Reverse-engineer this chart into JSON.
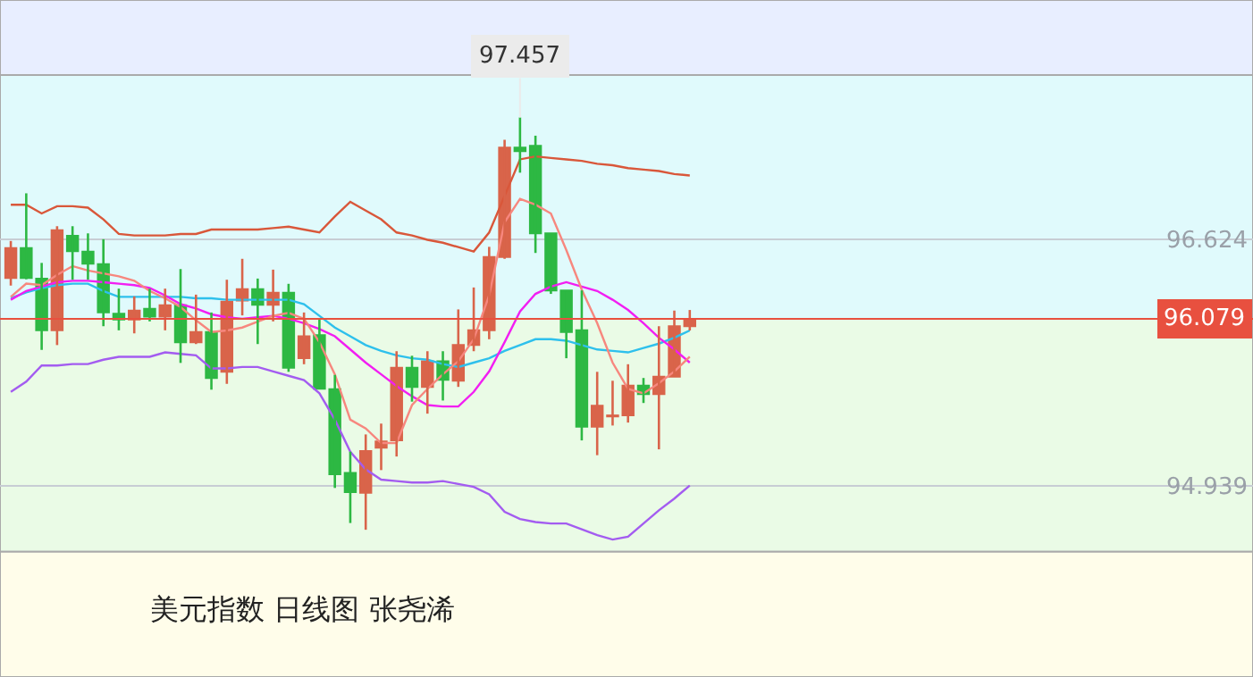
{
  "chart_data": {
    "type": "candlestick",
    "title": "美元指数 日线图 张尧浠",
    "categories": [
      null,
      null,
      null,
      null,
      null,
      null,
      null,
      null,
      null,
      null,
      null,
      null,
      null,
      null,
      null,
      null,
      null,
      null,
      null,
      null,
      null,
      null,
      null,
      null,
      null,
      null,
      null,
      null,
      null,
      null,
      null,
      null,
      null,
      null,
      null,
      null,
      null,
      null,
      null,
      null,
      null,
      null,
      null,
      null,
      null
    ],
    "ohlc": [
      [
        96.359,
        96.612,
        96.307,
        96.563
      ],
      [
        96.563,
        96.938,
        96.35,
        96.359
      ],
      [
        96.355,
        96.462,
        95.867,
        96.001
      ],
      [
        96.001,
        96.713,
        95.9,
        96.685
      ],
      [
        96.648,
        96.713,
        96.347,
        96.542
      ],
      [
        96.539,
        96.664,
        96.347,
        96.457
      ],
      [
        96.453,
        96.624,
        96.029,
        96.123
      ],
      [
        96.115,
        96.286,
        96.001,
        96.075
      ],
      [
        96.075,
        96.233,
        95.98,
        96.136
      ],
      [
        96.148,
        96.286,
        96.062,
        96.095
      ],
      [
        96.095,
        96.286,
        96.001,
        96.172
      ],
      [
        96.172,
        96.42,
        95.778,
        95.919
      ],
      [
        95.919,
        96.245,
        95.907,
        95.989
      ],
      [
        95.989,
        96.123,
        95.595,
        95.675
      ],
      [
        95.717,
        96.347,
        95.635,
        96.197
      ],
      [
        96.205,
        96.49,
        96.103,
        96.282
      ],
      [
        96.282,
        96.355,
        95.907,
        96.176
      ],
      [
        96.176,
        96.416,
        96.062,
        96.258
      ],
      [
        96.258,
        96.319,
        95.717,
        95.745
      ],
      [
        95.81,
        96.123,
        95.769,
        95.961
      ],
      [
        95.968,
        96.083,
        95.602,
        95.602
      ],
      [
        95.598,
        95.696,
        94.923,
        95.016
      ],
      [
        95.025,
        95.171,
        94.683,
        94.894
      ],
      [
        94.89,
        95.289,
        94.637,
        95.175
      ],
      [
        95.199,
        95.363,
        95.045,
        95.241
      ],
      [
        95.248,
        95.858,
        95.138,
        95.745
      ],
      [
        95.745,
        95.827,
        95.513,
        95.614
      ],
      [
        95.614,
        95.858,
        95.431,
        95.79
      ],
      [
        95.79,
        95.858,
        95.521,
        95.663
      ],
      [
        95.656,
        96.144,
        95.614,
        95.9
      ],
      [
        95.9,
        96.294,
        95.858,
        96.001
      ],
      [
        96.001,
        96.572,
        95.94,
        96.502
      ],
      [
        96.502,
        97.304,
        96.49,
        97.25
      ],
      [
        97.25,
        97.457,
        97.079,
        97.226
      ],
      [
        97.263,
        97.332,
        96.53,
        96.664
      ],
      [
        96.664,
        96.664,
        96.25,
        96.274
      ],
      [
        96.274,
        96.274,
        95.81,
        95.989
      ],
      [
        96.001,
        96.274,
        95.248,
        95.342
      ],
      [
        95.342,
        95.717,
        95.147,
        95.485
      ],
      [
        95.412,
        95.656,
        95.35,
        95.419
      ],
      [
        95.419,
        95.769,
        95.37,
        95.623
      ],
      [
        95.623,
        95.675,
        95.504,
        95.565
      ],
      [
        95.565,
        96.029,
        95.187,
        95.684
      ],
      [
        95.684,
        96.136,
        95.684,
        96.029
      ],
      [
        96.029,
        96.14,
        96.0,
        96.079
      ]
    ],
    "colors": [
      "#d9644a",
      "#2db843",
      "#2db843",
      "#d9644a",
      "#2db843",
      "#2db843",
      "#2db843",
      "#2db843",
      "#d9644a",
      "#2db843",
      "#d9644a",
      "#2db843",
      "#d9644a",
      "#2db843",
      "#d9644a",
      "#d9644a",
      "#2db843",
      "#d9644a",
      "#2db843",
      "#d9644a",
      "#2db843",
      "#2db843",
      "#2db843",
      "#d9644a",
      "#d9644a",
      "#d9644a",
      "#2db843",
      "#d9644a",
      "#2db843",
      "#d9644a",
      "#d9644a",
      "#d9644a",
      "#d9644a",
      "#2db843",
      "#2db843",
      "#2db843",
      "#2db843",
      "#2db843",
      "#d9644a",
      "#d9644a",
      "#d9644a",
      "#2db843",
      "#d9644a",
      "#d9644a",
      "#d9644a"
    ],
    "series": [
      {
        "type": "line",
        "color": "#d9573a",
        "values": [
          96.86,
          96.86,
          96.8,
          96.85,
          96.85,
          96.84,
          96.76,
          96.66,
          96.65,
          96.65,
          96.65,
          96.66,
          96.66,
          96.69,
          96.69,
          96.69,
          96.69,
          96.7,
          96.71,
          96.69,
          96.67,
          96.78,
          96.88,
          96.82,
          96.76,
          96.67,
          96.65,
          96.62,
          96.6,
          96.57,
          96.54,
          96.67,
          96.92,
          97.17,
          97.19,
          97.18,
          97.17,
          97.16,
          97.14,
          97.13,
          97.11,
          97.1,
          97.09,
          97.07,
          97.06
        ]
      },
      {
        "type": "line",
        "color": "#2ec0ec",
        "values": [
          96.22,
          96.26,
          96.29,
          96.31,
          96.32,
          96.32,
          96.27,
          96.23,
          96.23,
          96.23,
          96.23,
          96.23,
          96.22,
          96.22,
          96.21,
          96.21,
          96.21,
          96.21,
          96.21,
          96.18,
          96.1,
          96.02,
          95.96,
          95.9,
          95.86,
          95.83,
          95.81,
          95.8,
          95.77,
          95.75,
          95.78,
          95.81,
          95.86,
          95.9,
          95.94,
          95.94,
          95.93,
          95.9,
          95.87,
          95.86,
          95.85,
          95.88,
          95.91,
          95.95,
          96.0
        ]
      },
      {
        "type": "line",
        "color": "#f21ef2",
        "values": [
          96.21,
          96.27,
          96.3,
          96.33,
          96.34,
          96.34,
          96.33,
          96.32,
          96.31,
          96.29,
          96.24,
          96.18,
          96.15,
          96.11,
          96.09,
          96.08,
          96.09,
          96.1,
          96.08,
          96.05,
          96.01,
          95.96,
          95.87,
          95.78,
          95.7,
          95.62,
          95.55,
          95.49,
          95.48,
          95.48,
          95.58,
          95.72,
          95.92,
          96.13,
          96.25,
          96.3,
          96.33,
          96.3,
          96.27,
          96.21,
          96.14,
          96.05,
          95.95,
          95.87,
          95.78
        ]
      },
      {
        "type": "line",
        "color": "#f7877e",
        "values": [
          96.23,
          96.32,
          96.31,
          96.38,
          96.44,
          96.41,
          96.39,
          96.37,
          96.34,
          96.27,
          96.22,
          96.16,
          96.07,
          95.99,
          96.0,
          96.02,
          96.06,
          96.1,
          96.12,
          96.08,
          95.92,
          95.7,
          95.39,
          95.33,
          95.23,
          95.23,
          95.49,
          95.6,
          95.7,
          95.79,
          95.94,
          96.24,
          96.74,
          96.9,
          96.86,
          96.8,
          96.55,
          96.28,
          96.05,
          95.78,
          95.6,
          95.57,
          95.64,
          95.72,
          95.82
        ]
      },
      {
        "type": "line",
        "color": "#a35cf0",
        "values": [
          95.58,
          95.65,
          95.76,
          95.76,
          95.77,
          95.77,
          95.8,
          95.82,
          95.82,
          95.82,
          95.85,
          95.84,
          95.83,
          95.74,
          95.74,
          95.75,
          95.75,
          95.72,
          95.69,
          95.66,
          95.57,
          95.39,
          95.17,
          95.05,
          94.98,
          94.97,
          94.96,
          94.96,
          94.97,
          94.95,
          94.93,
          94.88,
          94.76,
          94.71,
          94.69,
          94.68,
          94.68,
          94.64,
          94.6,
          94.57,
          94.59,
          94.68,
          94.77,
          94.85,
          94.94
        ]
      }
    ],
    "ylim": [
      93.63,
      98.26
    ],
    "yticks": [
      96.624,
      94.939
    ],
    "grid": "y",
    "tick_labels": "y",
    "ref_lines": [
      {
        "axis": "y",
        "value": 96.079,
        "label": "96.079",
        "color": "#e8503f"
      }
    ],
    "bands": [
      {
        "axis": "y",
        "from": 97.747,
        "to": 98.26,
        "color": "#e8eeff"
      },
      {
        "axis": "y",
        "from": 96.079,
        "to": 97.747,
        "color": "#e0fafc"
      },
      {
        "axis": "y",
        "from": 94.487,
        "to": 96.079,
        "color": "#eafbe6"
      },
      {
        "axis": "y",
        "from": 93.63,
        "to": 94.487,
        "color": "#fffdea"
      }
    ],
    "annotations": [
      "97.457"
    ]
  }
}
